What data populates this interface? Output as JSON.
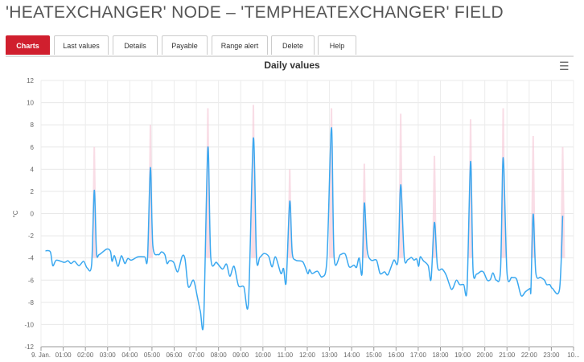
{
  "page": {
    "title": "'HEATEXCHANGER' NODE – 'TEMPHEATEXCHANGER' FIELD"
  },
  "tabs": [
    {
      "label": "Charts",
      "active": true
    },
    {
      "label": "Last values"
    },
    {
      "label": "Details"
    },
    {
      "label": "Payable"
    },
    {
      "label": "Range alert"
    },
    {
      "label": "Delete"
    },
    {
      "label": "Help"
    }
  ],
  "chart_menu_icon": "hamburger-menu-icon",
  "colors": {
    "accent": "#d01f2e",
    "line": "#3aa8f0",
    "range": "#f5c6d6"
  },
  "chart_data": {
    "type": "line",
    "title": "Daily values",
    "ylabel": "°C",
    "xlabel": "",
    "ylim": [
      -12,
      12
    ],
    "yticks": [
      "12",
      "10",
      "8",
      "6",
      "4",
      "2",
      "0",
      "-2",
      "-4",
      "-6",
      "-8",
      "-10",
      "-12"
    ],
    "xlim_hours": [
      0,
      24
    ],
    "xticks": [
      "9. Jan.",
      "01:00",
      "02:00",
      "03:00",
      "04:00",
      "05:00",
      "06:00",
      "07:00",
      "08:00",
      "09:00",
      "10:00",
      "11:00",
      "12:00",
      "13:00",
      "14:00",
      "15:00",
      "16:00",
      "17:00",
      "18:00",
      "19:00",
      "20:00",
      "21:00",
      "22:00",
      "23:00",
      "10..."
    ],
    "grid": true,
    "legend": "none",
    "series": [
      {
        "points_hour_value": [
          [
            0.2,
            -3.35
          ],
          [
            0.42,
            -3.45
          ],
          [
            0.53,
            -4.7
          ],
          [
            0.69,
            -4.2
          ],
          [
            1.05,
            -4.4
          ],
          [
            1.21,
            -4.25
          ],
          [
            1.35,
            -4.5
          ],
          [
            1.51,
            -4.3
          ],
          [
            1.71,
            -4.7
          ],
          [
            1.92,
            -4.3
          ],
          [
            2.08,
            -4.9
          ],
          [
            2.28,
            -4.6
          ],
          [
            2.4,
            2.1
          ],
          [
            2.5,
            -3.47
          ],
          [
            2.62,
            -3.7
          ],
          [
            2.96,
            -3.2
          ],
          [
            3.13,
            -3.4
          ],
          [
            3.2,
            -4.3
          ],
          [
            3.31,
            -3.8
          ],
          [
            3.47,
            -4.75
          ],
          [
            3.62,
            -3.8
          ],
          [
            3.78,
            -4.5
          ],
          [
            3.91,
            -4.05
          ],
          [
            4.07,
            -4.2
          ],
          [
            4.37,
            -3.9
          ],
          [
            4.67,
            -3.9
          ],
          [
            4.8,
            -4.0
          ],
          [
            4.93,
            4.15
          ],
          [
            5.04,
            -2.9
          ],
          [
            5.28,
            -3.7
          ],
          [
            5.43,
            -3.45
          ],
          [
            5.58,
            -3.7
          ],
          [
            5.68,
            -4.5
          ],
          [
            5.79,
            -4.25
          ],
          [
            5.98,
            -4.4
          ],
          [
            6.16,
            -5.25
          ],
          [
            6.36,
            -3.85
          ],
          [
            6.49,
            -4.1
          ],
          [
            6.64,
            -6.6
          ],
          [
            6.87,
            -6.0
          ],
          [
            7.03,
            -7.35
          ],
          [
            7.18,
            -8.8
          ],
          [
            7.33,
            -9.6
          ],
          [
            7.52,
            5.95
          ],
          [
            7.65,
            -3.95
          ],
          [
            7.91,
            -4.4
          ],
          [
            8.18,
            -5.0
          ],
          [
            8.36,
            -4.55
          ],
          [
            8.51,
            -5.65
          ],
          [
            8.7,
            -4.75
          ],
          [
            8.9,
            -6.5
          ],
          [
            9.14,
            -6.6
          ],
          [
            9.35,
            -7.95
          ],
          [
            9.57,
            6.8
          ],
          [
            9.71,
            -3.95
          ],
          [
            9.86,
            -3.95
          ],
          [
            10.05,
            -3.6
          ],
          [
            10.26,
            -3.85
          ],
          [
            10.41,
            -4.8
          ],
          [
            10.57,
            -3.9
          ],
          [
            10.81,
            -5.4
          ],
          [
            10.93,
            -4.95
          ],
          [
            11.05,
            -6.15
          ],
          [
            11.21,
            1.1
          ],
          [
            11.32,
            -3.5
          ],
          [
            11.48,
            -4.2
          ],
          [
            11.8,
            -4.35
          ],
          [
            12.02,
            -5.4
          ],
          [
            12.1,
            -5.05
          ],
          [
            12.22,
            -5.4
          ],
          [
            12.46,
            -5.2
          ],
          [
            12.68,
            -5.7
          ],
          [
            12.89,
            -4.0
          ],
          [
            13.09,
            7.75
          ],
          [
            13.21,
            -3.95
          ],
          [
            13.49,
            -3.7
          ],
          [
            13.71,
            -3.65
          ],
          [
            13.89,
            -4.8
          ],
          [
            14.1,
            -4.65
          ],
          [
            14.22,
            -4.85
          ],
          [
            14.34,
            -4.0
          ],
          [
            14.47,
            -5.4
          ],
          [
            14.57,
            0.95
          ],
          [
            14.7,
            -3.3
          ],
          [
            14.88,
            -4.2
          ],
          [
            15.12,
            -4.2
          ],
          [
            15.28,
            -5.4
          ],
          [
            15.48,
            -5.25
          ],
          [
            15.64,
            -5.5
          ],
          [
            15.9,
            -4.2
          ],
          [
            16.09,
            -4.2
          ],
          [
            16.21,
            2.6
          ],
          [
            16.37,
            -3.95
          ],
          [
            16.53,
            -4.15
          ],
          [
            16.69,
            -3.95
          ],
          [
            16.81,
            -4.2
          ],
          [
            16.93,
            -4.1
          ],
          [
            17.02,
            -4.75
          ],
          [
            17.09,
            -3.9
          ],
          [
            17.23,
            -4.25
          ],
          [
            17.45,
            -4.7
          ],
          [
            17.58,
            -5.9
          ],
          [
            17.73,
            -0.8
          ],
          [
            17.87,
            -4.8
          ],
          [
            18.08,
            -5.0
          ],
          [
            18.26,
            -5.55
          ],
          [
            18.47,
            -6.75
          ],
          [
            18.57,
            -6.7
          ],
          [
            18.72,
            -6.0
          ],
          [
            18.87,
            -6.4
          ],
          [
            19.05,
            -6.4
          ],
          [
            19.2,
            -6.75
          ],
          [
            19.36,
            4.7
          ],
          [
            19.47,
            -5.05
          ],
          [
            19.63,
            -5.45
          ],
          [
            19.83,
            -5.2
          ],
          [
            19.95,
            -5.3
          ],
          [
            20.11,
            -6.0
          ],
          [
            20.25,
            -5.95
          ],
          [
            20.37,
            -5.35
          ],
          [
            20.52,
            -6.0
          ],
          [
            20.71,
            -5.05
          ],
          [
            20.83,
            5.05
          ],
          [
            21.0,
            -5.3
          ],
          [
            21.22,
            -5.75
          ],
          [
            21.43,
            -5.9
          ],
          [
            21.64,
            -7.4
          ],
          [
            21.83,
            -7.05
          ],
          [
            22.04,
            -6.75
          ],
          [
            22.08,
            -6.8
          ],
          [
            22.18,
            -0.05
          ],
          [
            22.3,
            -5.35
          ],
          [
            22.52,
            -5.75
          ],
          [
            22.69,
            -6.0
          ],
          [
            22.79,
            -6.4
          ],
          [
            22.93,
            -6.4
          ],
          [
            23.05,
            -6.75
          ],
          [
            23.37,
            -6.8
          ],
          [
            23.51,
            -0.2
          ]
        ]
      }
    ],
    "range_peaks_hour_max": [
      [
        2.4,
        6
      ],
      [
        4.93,
        8
      ],
      [
        7.52,
        9.5
      ],
      [
        9.57,
        9.8
      ],
      [
        11.21,
        4
      ],
      [
        13.09,
        9.5
      ],
      [
        14.57,
        4.5
      ],
      [
        16.21,
        9
      ],
      [
        17.73,
        5.2
      ],
      [
        19.36,
        8.5
      ],
      [
        20.83,
        9.5
      ],
      [
        22.18,
        7
      ],
      [
        23.51,
        6
      ]
    ]
  }
}
